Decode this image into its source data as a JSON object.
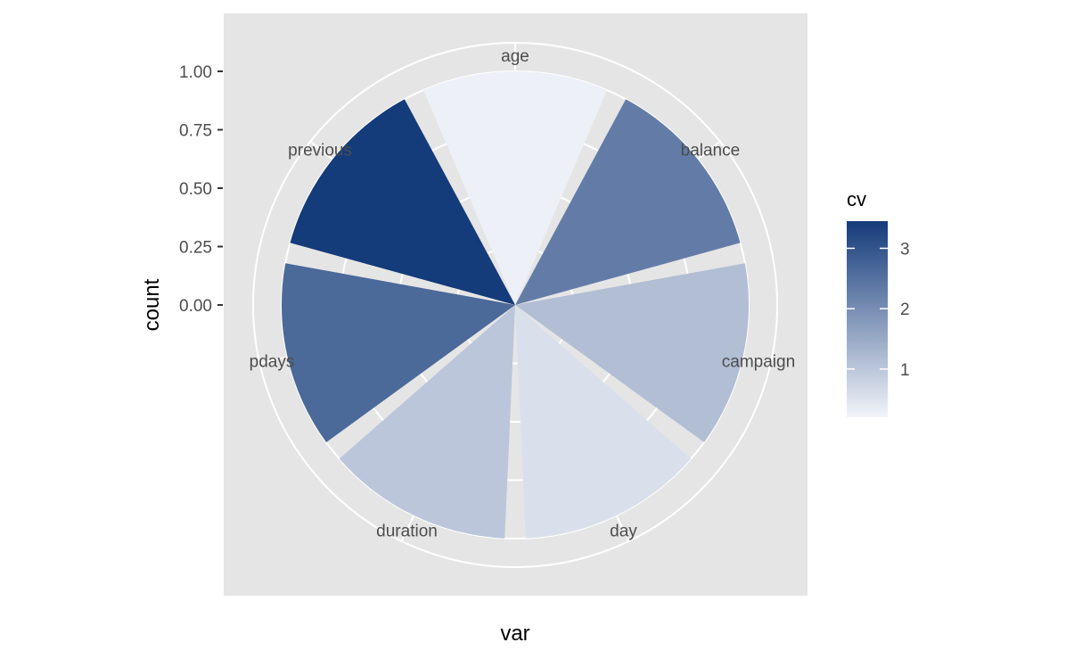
{
  "chart_data": {
    "type": "bar",
    "coord": "polar",
    "categories": [
      "age",
      "balance",
      "campaign",
      "day",
      "duration",
      "pdays",
      "previous"
    ],
    "values": [
      1,
      1,
      1,
      1,
      1,
      1,
      1
    ],
    "fill_values": [
      0.27,
      2.3,
      1.15,
      0.55,
      1.0,
      2.65,
      3.45
    ],
    "xlabel": "var",
    "ylabel": "count",
    "yticks": [
      "1.00",
      "0.75",
      "0.50",
      "0.25",
      "0.00"
    ],
    "ytick_values": [
      1.0,
      0.75,
      0.5,
      0.25,
      0.0
    ],
    "ylim": [
      0,
      1
    ],
    "legend": {
      "title": "cv",
      "labels": [
        "3",
        "2",
        "1"
      ],
      "label_values": [
        3,
        2,
        1
      ],
      "range": [
        0.2,
        3.45
      ],
      "low_color": "#f2f4f9",
      "high_color": "#143b7a",
      "position": "right"
    },
    "panel_background": "#e5e5e5",
    "grid": true
  }
}
